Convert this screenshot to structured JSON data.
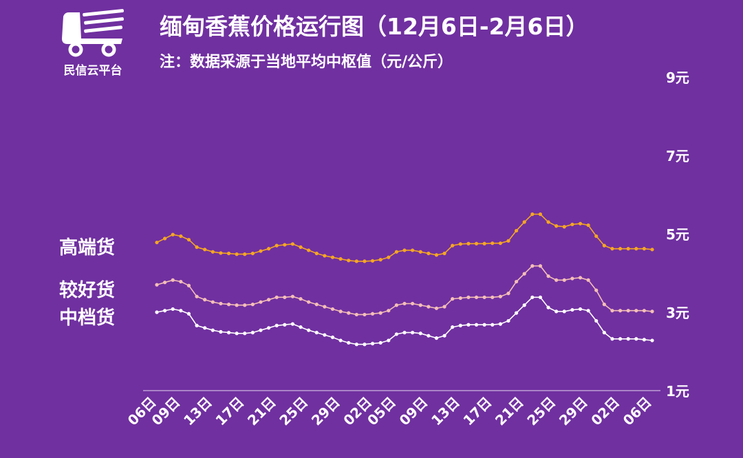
{
  "brand": {
    "name": "民信云平台",
    "icon": "truck-icon"
  },
  "header": {
    "title": "缅甸香蕉价格运行图（12月6日-2月6日）",
    "subtitle": "注：数据采源于当地平均中枢值（元/公斤）"
  },
  "colors": {
    "background": "#7030A0",
    "high": "#F5A623",
    "good": "#F4BFB7",
    "mid": "#FFFFFF",
    "axis": "#E6D8F0"
  },
  "chart_data": {
    "type": "line",
    "ylim": [
      1,
      9
    ],
    "yticks": [
      1,
      3,
      5,
      7,
      9
    ],
    "ytick_labels": [
      "1元",
      "3元",
      "5元",
      "7元",
      "9元"
    ],
    "xtick_labels": [
      "06日",
      "09日",
      "13日",
      "17日",
      "21日",
      "25日",
      "29日",
      "02日",
      "05日",
      "09日",
      "13日",
      "17日",
      "21日",
      "25日",
      "29日",
      "02日",
      "06日"
    ],
    "xtick_index": [
      0,
      3,
      7,
      11,
      15,
      19,
      23,
      27,
      30,
      34,
      38,
      42,
      46,
      50,
      54,
      58,
      62
    ],
    "series": [
      {
        "name": "高端货",
        "color": "#F5A623",
        "values": [
          4.78,
          4.88,
          4.98,
          4.94,
          4.85,
          4.66,
          4.6,
          4.54,
          4.51,
          4.5,
          4.48,
          4.48,
          4.5,
          4.56,
          4.62,
          4.7,
          4.72,
          4.74,
          4.66,
          4.58,
          4.5,
          4.44,
          4.4,
          4.36,
          4.32,
          4.3,
          4.3,
          4.31,
          4.34,
          4.4,
          4.54,
          4.58,
          4.58,
          4.54,
          4.5,
          4.46,
          4.5,
          4.7,
          4.74,
          4.75,
          4.75,
          4.75,
          4.76,
          4.76,
          4.82,
          5.08,
          5.3,
          5.5,
          5.5,
          5.3,
          5.2,
          5.18,
          5.24,
          5.26,
          5.22,
          4.94,
          4.7,
          4.62,
          4.62,
          4.62,
          4.62,
          4.62,
          4.6
        ]
      },
      {
        "name": "较好货",
        "color": "#F4BFB7",
        "values": [
          3.7,
          3.76,
          3.82,
          3.78,
          3.68,
          3.4,
          3.32,
          3.26,
          3.22,
          3.2,
          3.18,
          3.18,
          3.2,
          3.26,
          3.32,
          3.38,
          3.38,
          3.4,
          3.34,
          3.26,
          3.2,
          3.14,
          3.08,
          3.02,
          2.98,
          2.94,
          2.94,
          2.96,
          2.98,
          3.04,
          3.18,
          3.22,
          3.22,
          3.18,
          3.14,
          3.1,
          3.14,
          3.34,
          3.36,
          3.38,
          3.38,
          3.38,
          3.38,
          3.4,
          3.48,
          3.78,
          3.98,
          4.18,
          4.18,
          3.92,
          3.82,
          3.82,
          3.86,
          3.88,
          3.82,
          3.56,
          3.2,
          3.04,
          3.04,
          3.04,
          3.04,
          3.04,
          3.02
        ]
      },
      {
        "name": "中档货",
        "color": "#FFFFFF",
        "values": [
          3.0,
          3.04,
          3.08,
          3.04,
          2.96,
          2.66,
          2.6,
          2.54,
          2.5,
          2.48,
          2.46,
          2.46,
          2.48,
          2.54,
          2.6,
          2.66,
          2.68,
          2.7,
          2.62,
          2.54,
          2.48,
          2.42,
          2.36,
          2.28,
          2.22,
          2.18,
          2.18,
          2.2,
          2.22,
          2.28,
          2.44,
          2.48,
          2.48,
          2.46,
          2.4,
          2.34,
          2.4,
          2.62,
          2.66,
          2.68,
          2.68,
          2.68,
          2.68,
          2.7,
          2.78,
          2.98,
          3.18,
          3.38,
          3.38,
          3.12,
          3.02,
          3.02,
          3.06,
          3.08,
          3.04,
          2.78,
          2.48,
          2.32,
          2.32,
          2.32,
          2.32,
          2.3,
          2.28
        ]
      }
    ]
  }
}
